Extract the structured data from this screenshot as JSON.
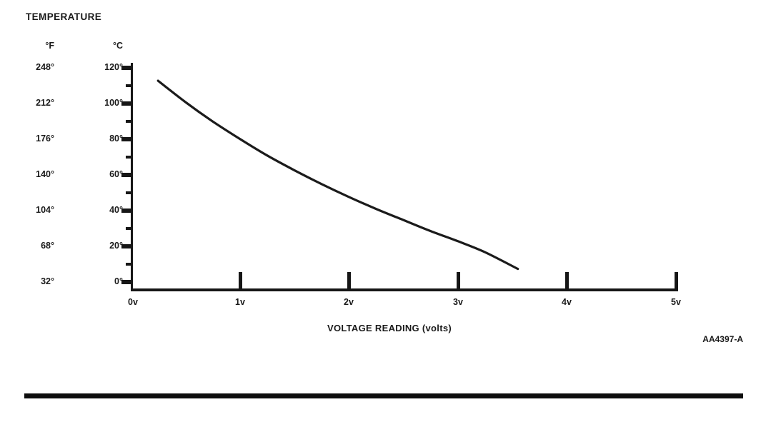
{
  "page": {
    "figure_id": "AA4397-A"
  },
  "chart_data": {
    "type": "line",
    "title": "TEMPERATURE",
    "xlabel": "VOLTAGE READING (volts)",
    "x_axis": {
      "labels": [
        "0v",
        "1v",
        "2v",
        "3v",
        "4v",
        "5v"
      ]
    },
    "y_axis_f": {
      "header": "°F",
      "labels": [
        "248°",
        "212°",
        "176°",
        "140°",
        "104°",
        "68°",
        "32°"
      ]
    },
    "y_axis_c": {
      "header": "°C",
      "labels": [
        "120°",
        "100°",
        "80°",
        "60°",
        "40°",
        "20°",
        "0°"
      ]
    },
    "xlim": [
      0,
      5
    ],
    "ylim_c": [
      0,
      120
    ],
    "grid": false,
    "legend": false,
    "line_color": "#1b1b1b",
    "series": [
      {
        "name": "temperature-vs-voltage-reading",
        "x": [
          0.25,
          0.5,
          0.75,
          1.0,
          1.25,
          1.5,
          1.75,
          2.0,
          2.25,
          2.5,
          2.75,
          3.0,
          3.25,
          3.55
        ],
        "y_c": [
          113,
          101.5,
          91,
          81.5,
          72.5,
          64.5,
          57,
          50,
          43.5,
          37.5,
          31.5,
          26,
          20,
          11
        ]
      }
    ]
  }
}
